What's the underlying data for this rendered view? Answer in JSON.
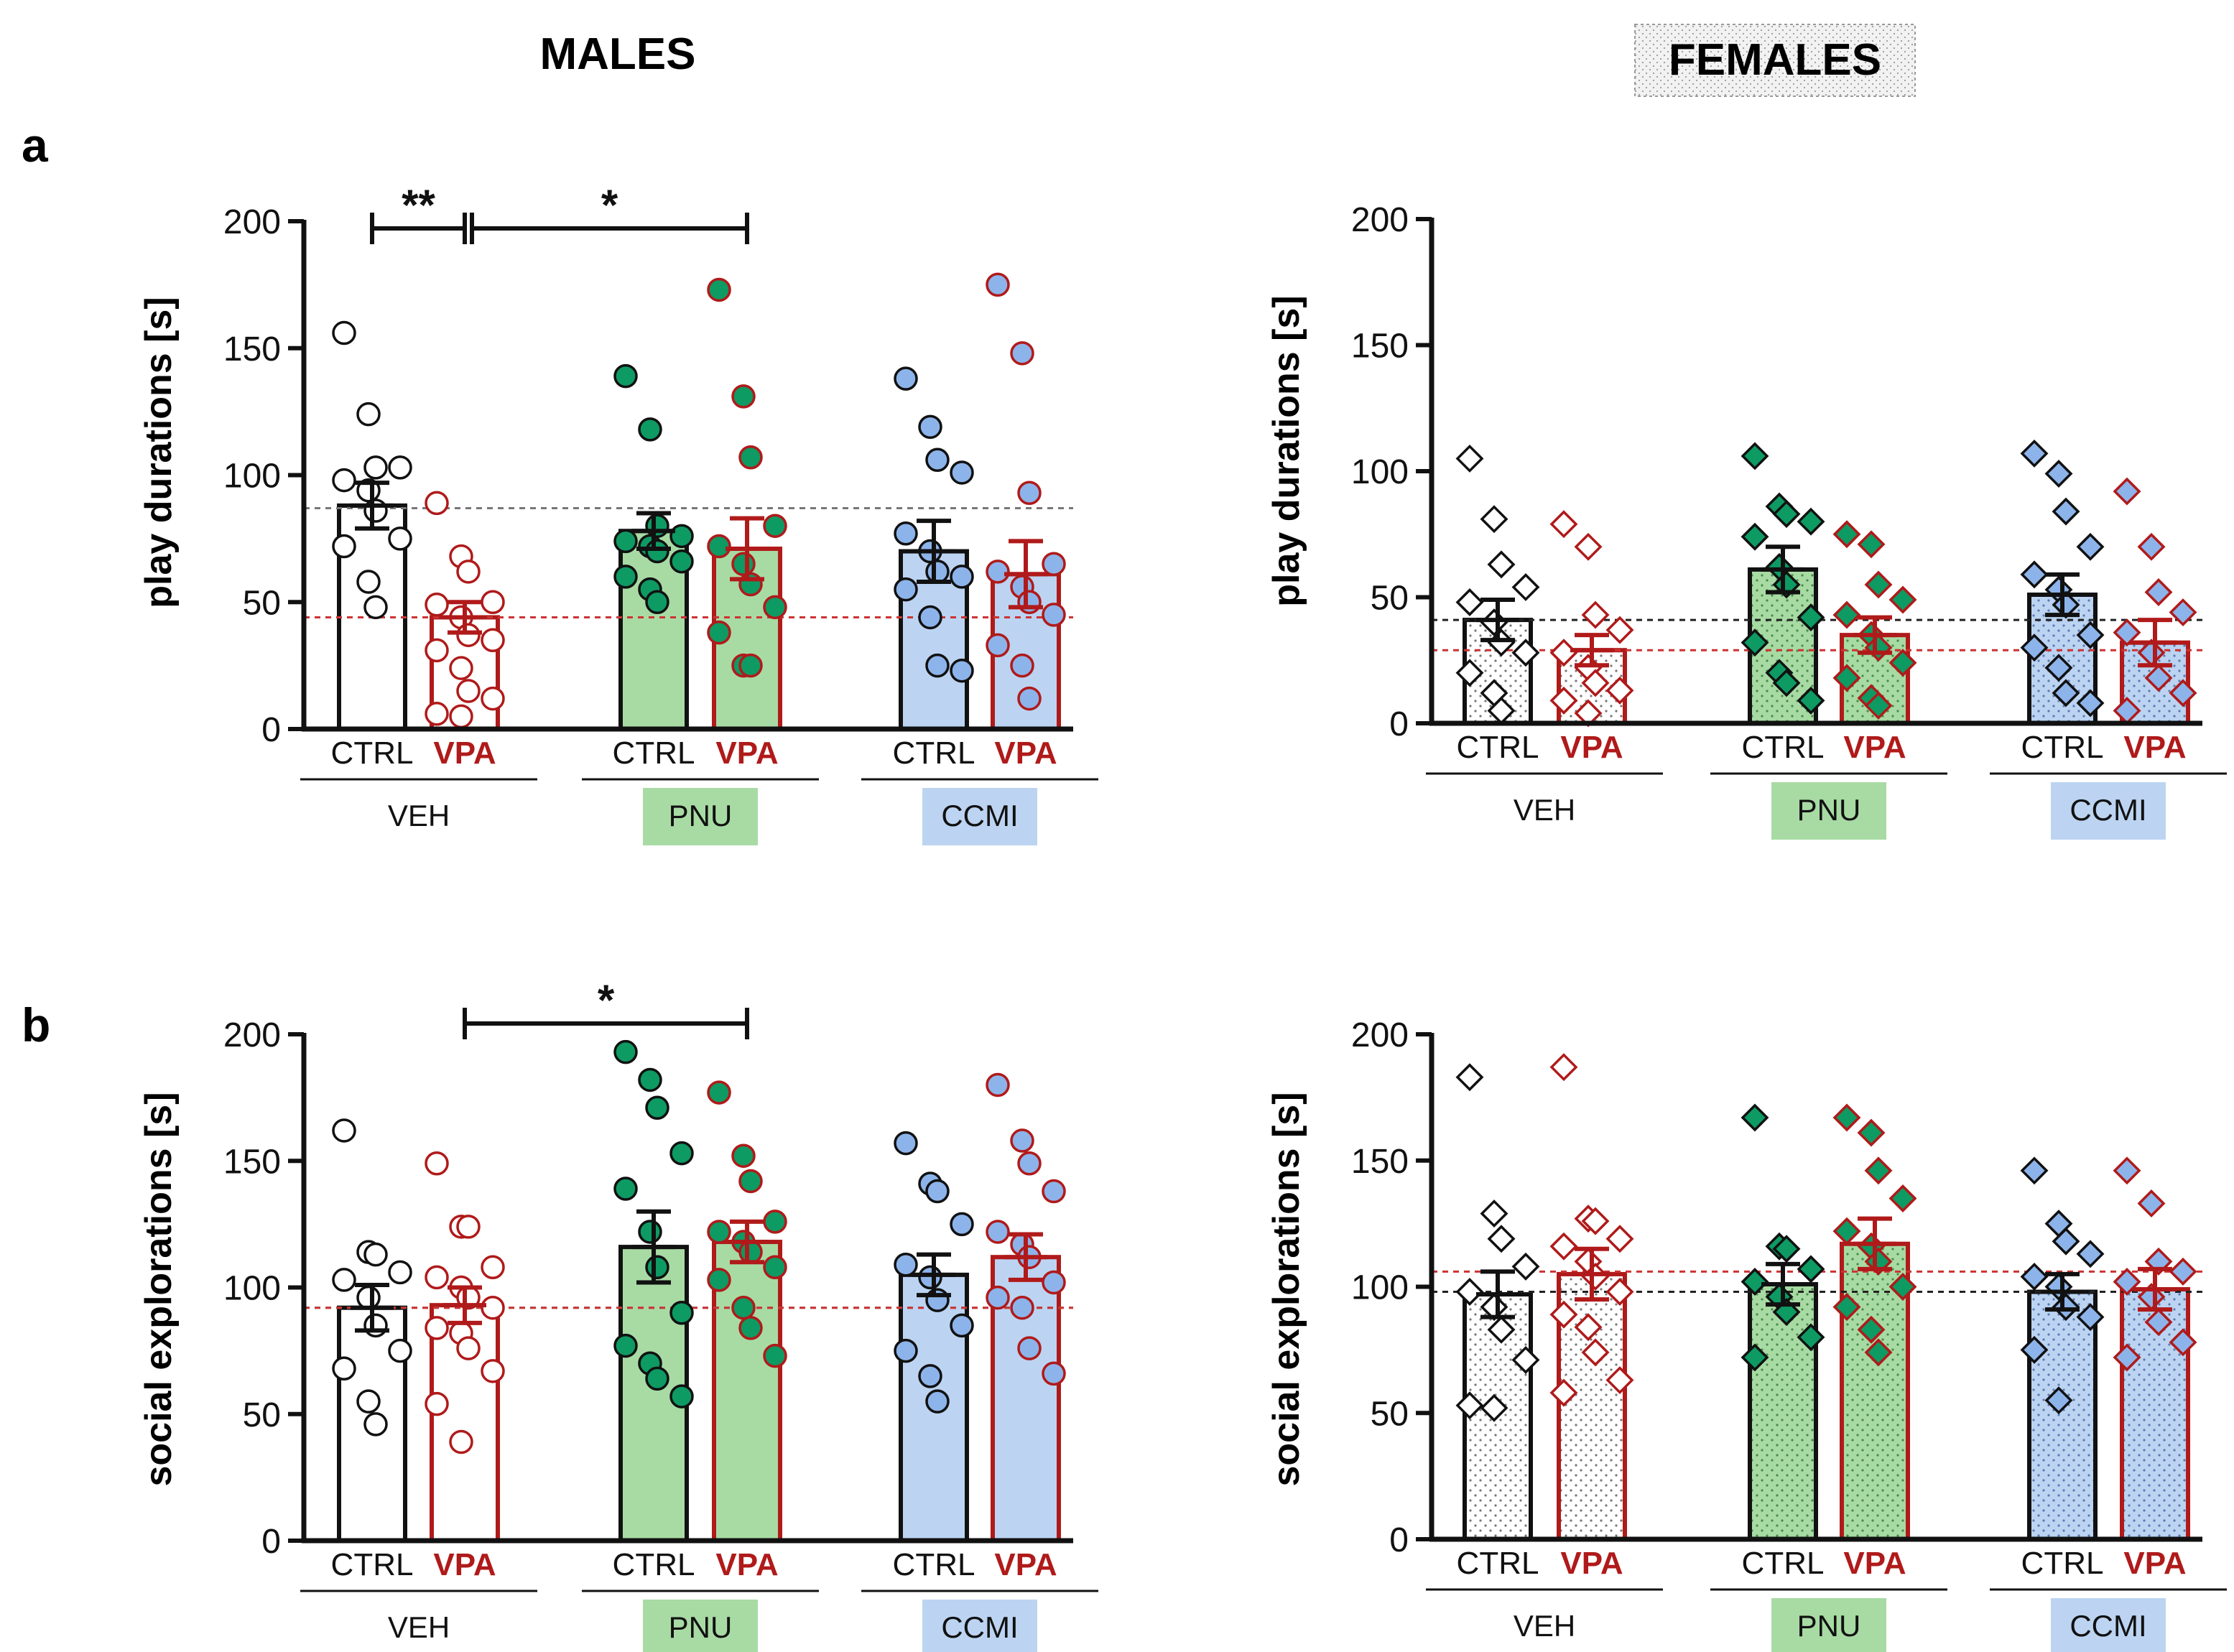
{
  "figure": {
    "col_titles": [
      "MALES",
      "FEMALES"
    ],
    "row_labels": [
      "a",
      "b"
    ]
  },
  "colors": {
    "ctrl_edge": "#111111",
    "vpa_edge": "#b01a1a",
    "veh_fill": "#ffffff",
    "pnu_fill": "#a8dba4",
    "ccmi_fill": "#bcd4f2",
    "pnu_point": "#0e9a63",
    "ccmi_point": "#8db4ea",
    "ref_ctrl": "#777777",
    "ref_vpa": "#cc3333"
  },
  "chart_data": [
    {
      "id": "male-play",
      "type": "bar",
      "sex": "MALES",
      "marker": "circle",
      "ylabel": "play durations [s]",
      "ylim": [
        0,
        200
      ],
      "yticks": [
        0,
        50,
        100,
        150,
        200
      ],
      "groups": [
        "VEH",
        "PNU",
        "CCMI"
      ],
      "conditions": [
        "CTRL",
        "VPA"
      ],
      "reference_lines": {
        "ctrl": 87,
        "vpa": 44
      },
      "series": [
        {
          "name": "VEH CTRL",
          "group": "VEH",
          "condition": "CTRL",
          "mean": 88,
          "sem": 9,
          "points": [
            156,
            124,
            103,
            103,
            98,
            94,
            86,
            75,
            72,
            58,
            48
          ]
        },
        {
          "name": "VEH VPA",
          "group": "VEH",
          "condition": "VPA",
          "mean": 44,
          "sem": 6,
          "points": [
            89,
            68,
            62,
            50,
            49,
            44,
            37,
            35,
            31,
            24,
            15,
            12,
            6,
            5
          ]
        },
        {
          "name": "PNU CTRL",
          "group": "PNU",
          "condition": "CTRL",
          "mean": 78,
          "sem": 7,
          "points": [
            139,
            118,
            80,
            76,
            74,
            72,
            70,
            66,
            60,
            55,
            50
          ]
        },
        {
          "name": "PNU VPA",
          "group": "PNU",
          "condition": "VPA",
          "mean": 71,
          "sem": 12,
          "points": [
            173,
            131,
            107,
            80,
            72,
            65,
            57,
            48,
            38,
            25,
            25
          ]
        },
        {
          "name": "CCMI CTRL",
          "group": "CCMI",
          "condition": "CTRL",
          "mean": 70,
          "sem": 12,
          "points": [
            138,
            119,
            106,
            101,
            77,
            70,
            62,
            60,
            55,
            44,
            25,
            23
          ]
        },
        {
          "name": "CCMI VPA",
          "group": "CCMI",
          "condition": "VPA",
          "mean": 61,
          "sem": 13,
          "points": [
            175,
            148,
            93,
            65,
            62,
            56,
            50,
            45,
            33,
            25,
            12
          ]
        }
      ],
      "significance": [
        {
          "from": "VEH CTRL",
          "to": "VEH VPA",
          "label": "**"
        },
        {
          "from": "VEH VPA",
          "to": "PNU VPA",
          "label": "*"
        }
      ]
    },
    {
      "id": "female-play",
      "type": "bar",
      "sex": "FEMALES",
      "marker": "diamond",
      "ylabel": "play durations [s]",
      "ylim": [
        0,
        200
      ],
      "yticks": [
        0,
        50,
        100,
        150,
        200
      ],
      "groups": [
        "VEH",
        "PNU",
        "CCMI"
      ],
      "conditions": [
        "CTRL",
        "VPA"
      ],
      "reference_lines": {
        "ctrl": 41,
        "vpa": 29
      },
      "series": [
        {
          "name": "VEH CTRL",
          "group": "VEH",
          "condition": "CTRL",
          "mean": 41,
          "sem": 8,
          "points": [
            105,
            81,
            63,
            54,
            48,
            40,
            32,
            28,
            20,
            12,
            5
          ]
        },
        {
          "name": "VEH VPA",
          "group": "VEH",
          "condition": "VPA",
          "mean": 29,
          "sem": 6,
          "points": [
            79,
            70,
            43,
            37,
            28,
            22,
            16,
            13,
            9,
            4
          ]
        },
        {
          "name": "PNU CTRL",
          "group": "PNU",
          "condition": "CTRL",
          "mean": 61,
          "sem": 9,
          "points": [
            106,
            86,
            83,
            80,
            74,
            62,
            55,
            42,
            32,
            20,
            16,
            9
          ]
        },
        {
          "name": "PNU VPA",
          "group": "PNU",
          "condition": "VPA",
          "mean": 35,
          "sem": 7,
          "points": [
            75,
            71,
            55,
            49,
            43,
            35,
            30,
            24,
            18,
            10,
            7
          ]
        },
        {
          "name": "CCMI CTRL",
          "group": "CCMI",
          "condition": "CTRL",
          "mean": 51,
          "sem": 8,
          "points": [
            107,
            99,
            84,
            70,
            59,
            53,
            47,
            35,
            30,
            22,
            12,
            8
          ]
        },
        {
          "name": "CCMI VPA",
          "group": "CCMI",
          "condition": "VPA",
          "mean": 32,
          "sem": 9,
          "points": [
            92,
            70,
            52,
            44,
            36,
            28,
            18,
            12,
            5
          ]
        }
      ],
      "significance": []
    },
    {
      "id": "male-social",
      "type": "bar",
      "sex": "MALES",
      "marker": "circle",
      "ylabel": "social explorations [s]",
      "ylim": [
        0,
        200
      ],
      "yticks": [
        0,
        50,
        100,
        150,
        200
      ],
      "groups": [
        "VEH",
        "PNU",
        "CCMI"
      ],
      "conditions": [
        "CTRL",
        "VPA"
      ],
      "reference_lines": {
        "ctrl": 92,
        "vpa": 92
      },
      "series": [
        {
          "name": "VEH CTRL",
          "group": "VEH",
          "condition": "CTRL",
          "mean": 92,
          "sem": 9,
          "points": [
            162,
            114,
            113,
            106,
            103,
            96,
            85,
            75,
            68,
            55,
            46
          ]
        },
        {
          "name": "VEH VPA",
          "group": "VEH",
          "condition": "VPA",
          "mean": 93,
          "sem": 7,
          "points": [
            149,
            124,
            124,
            108,
            104,
            100,
            96,
            92,
            84,
            82,
            76,
            67,
            54,
            39
          ]
        },
        {
          "name": "PNU CTRL",
          "group": "PNU",
          "condition": "CTRL",
          "mean": 116,
          "sem": 14,
          "points": [
            193,
            182,
            171,
            153,
            139,
            122,
            108,
            90,
            77,
            70,
            64,
            57
          ]
        },
        {
          "name": "PNU VPA",
          "group": "PNU",
          "condition": "VPA",
          "mean": 118,
          "sem": 8,
          "points": [
            177,
            152,
            142,
            126,
            122,
            118,
            114,
            108,
            103,
            92,
            84,
            73
          ]
        },
        {
          "name": "CCMI CTRL",
          "group": "CCMI",
          "condition": "CTRL",
          "mean": 105,
          "sem": 8,
          "points": [
            157,
            141,
            138,
            125,
            109,
            104,
            95,
            85,
            75,
            65,
            55
          ]
        },
        {
          "name": "CCMI VPA",
          "group": "CCMI",
          "condition": "VPA",
          "mean": 112,
          "sem": 9,
          "points": [
            180,
            158,
            149,
            138,
            122,
            117,
            112,
            102,
            96,
            92,
            76,
            66
          ]
        }
      ],
      "significance": [
        {
          "from": "VEH VPA",
          "to": "PNU VPA",
          "label": "*"
        }
      ]
    },
    {
      "id": "female-social",
      "type": "bar",
      "sex": "FEMALES",
      "marker": "diamond",
      "ylabel": "social explorations [s]",
      "ylim": [
        0,
        200
      ],
      "yticks": [
        0,
        50,
        100,
        150,
        200
      ],
      "groups": [
        "VEH",
        "PNU",
        "CCMI"
      ],
      "conditions": [
        "CTRL",
        "VPA"
      ],
      "reference_lines": {
        "ctrl": 98,
        "vpa": 106
      },
      "series": [
        {
          "name": "VEH CTRL",
          "group": "VEH",
          "condition": "CTRL",
          "mean": 97,
          "sem": 9,
          "points": [
            183,
            129,
            119,
            108,
            98,
            92,
            83,
            71,
            53,
            52
          ]
        },
        {
          "name": "VEH VPA",
          "group": "VEH",
          "condition": "VPA",
          "mean": 105,
          "sem": 10,
          "points": [
            187,
            127,
            126,
            119,
            116,
            110,
            104,
            98,
            89,
            84,
            74,
            63,
            58
          ]
        },
        {
          "name": "PNU CTRL",
          "group": "PNU",
          "condition": "CTRL",
          "mean": 101,
          "sem": 8,
          "points": [
            167,
            116,
            115,
            107,
            102,
            96,
            90,
            80,
            72
          ]
        },
        {
          "name": "PNU VPA",
          "group": "PNU",
          "condition": "VPA",
          "mean": 117,
          "sem": 10,
          "points": [
            167,
            161,
            146,
            135,
            122,
            116,
            110,
            100,
            92,
            83,
            74
          ]
        },
        {
          "name": "CCMI CTRL",
          "group": "CCMI",
          "condition": "CTRL",
          "mean": 98,
          "sem": 7,
          "points": [
            146,
            125,
            118,
            113,
            104,
            100,
            92,
            88,
            75,
            55
          ]
        },
        {
          "name": "CCMI VPA",
          "group": "CCMI",
          "condition": "VPA",
          "mean": 99,
          "sem": 8,
          "points": [
            146,
            133,
            110,
            106,
            102,
            96,
            86,
            78,
            72
          ]
        }
      ],
      "significance": []
    }
  ]
}
